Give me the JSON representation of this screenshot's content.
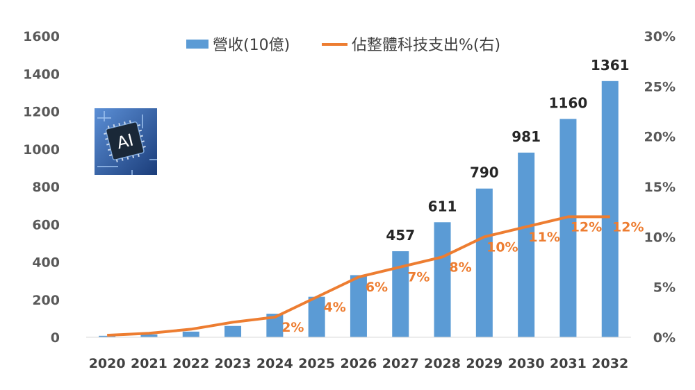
{
  "colors": {
    "bar": "#5B9BD5",
    "line": "#ED7D31",
    "axis_text": "#595959"
  },
  "icon": "ai-chip-icon",
  "icon_text": "AI",
  "chart_data": {
    "type": "bar",
    "categories": [
      "2020",
      "2021",
      "2022",
      "2023",
      "2024",
      "2025",
      "2026",
      "2027",
      "2028",
      "2029",
      "2030",
      "2031",
      "2032"
    ],
    "series": [
      {
        "name": "營收(10億)",
        "type": "bar",
        "axis": "left",
        "values": [
          8,
          15,
          30,
          60,
          125,
          215,
          330,
          457,
          611,
          790,
          981,
          1160,
          1361
        ],
        "data_labels": [
          null,
          null,
          null,
          null,
          null,
          null,
          null,
          "457",
          "611",
          "790",
          "981",
          "1160",
          "1361"
        ]
      },
      {
        "name": "佔整體科技支出%(右)",
        "type": "line",
        "axis": "right",
        "values": [
          0.2,
          0.4,
          0.8,
          1.5,
          2,
          4,
          6,
          7,
          8,
          10,
          11,
          12,
          12
        ],
        "data_labels": [
          null,
          null,
          null,
          null,
          "2%",
          "4%",
          "6%",
          "7%",
          "8%",
          "10%",
          "11%",
          "12%",
          "12%"
        ]
      }
    ],
    "y_left": {
      "ylim": [
        0,
        1600
      ],
      "ticks": [
        "0",
        "200",
        "400",
        "600",
        "800",
        "1000",
        "1200",
        "1400",
        "1600"
      ]
    },
    "y_right": {
      "ylim": [
        0,
        30
      ],
      "ticks": [
        "0%",
        "5%",
        "10%",
        "15%",
        "20%",
        "25%",
        "30%"
      ]
    },
    "legend": "top",
    "grid": false
  }
}
